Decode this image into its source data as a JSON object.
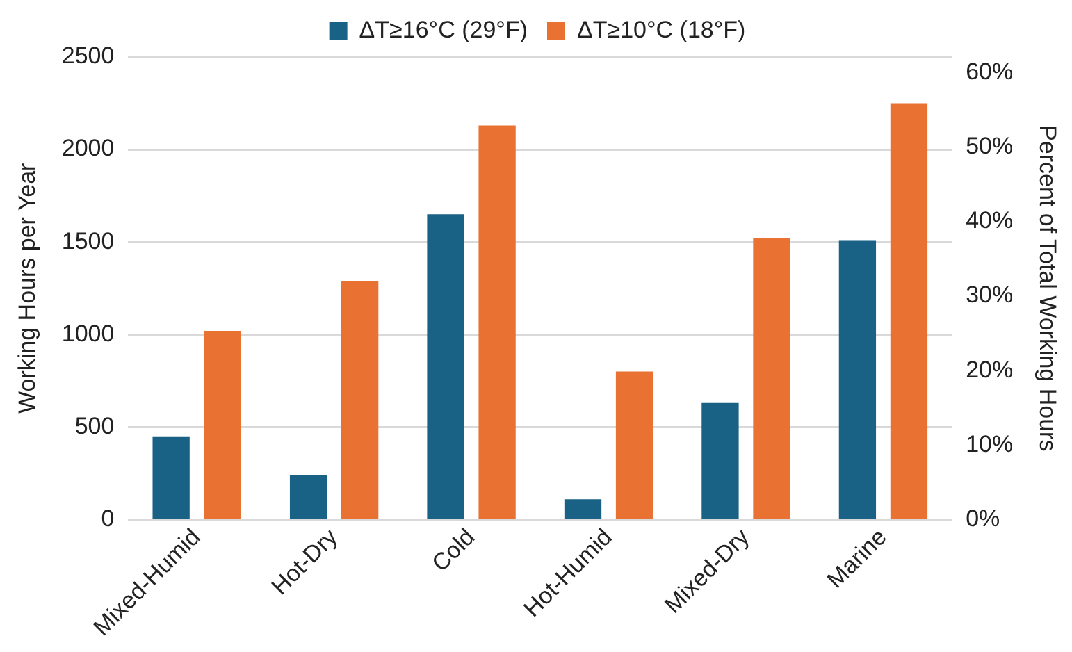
{
  "chart_data": {
    "type": "bar",
    "categories": [
      "Mixed-Humid",
      "Hot-Dry",
      "Cold",
      "Hot-Humid",
      "Mixed-Dry",
      "Marine"
    ],
    "series": [
      {
        "name": "ΔT≥16°C (29°F)",
        "color": "#196185",
        "values": [
          450,
          240,
          1650,
          110,
          630,
          1510
        ]
      },
      {
        "name": "ΔT≥10°C (18°F)",
        "color": "#e97132",
        "values": [
          1020,
          1290,
          2130,
          800,
          1520,
          2250
        ]
      }
    ],
    "ylabel": "Working Hours per Year",
    "y2label": "Percent of Total Working Hours",
    "ylim": [
      0,
      2500
    ],
    "yticks": [
      0,
      500,
      1000,
      1500,
      2000,
      2500
    ],
    "y2lim": [
      0,
      62.1
    ],
    "y2ticks": [
      {
        "value": 0,
        "label": "0%"
      },
      {
        "value": 10,
        "label": "10%"
      },
      {
        "value": 20,
        "label": "20%"
      },
      {
        "value": 30,
        "label": "30%"
      },
      {
        "value": 40,
        "label": "40%"
      },
      {
        "value": 50,
        "label": "50%"
      },
      {
        "value": 60,
        "label": "60%"
      }
    ],
    "grid": "y",
    "legend": "top"
  }
}
